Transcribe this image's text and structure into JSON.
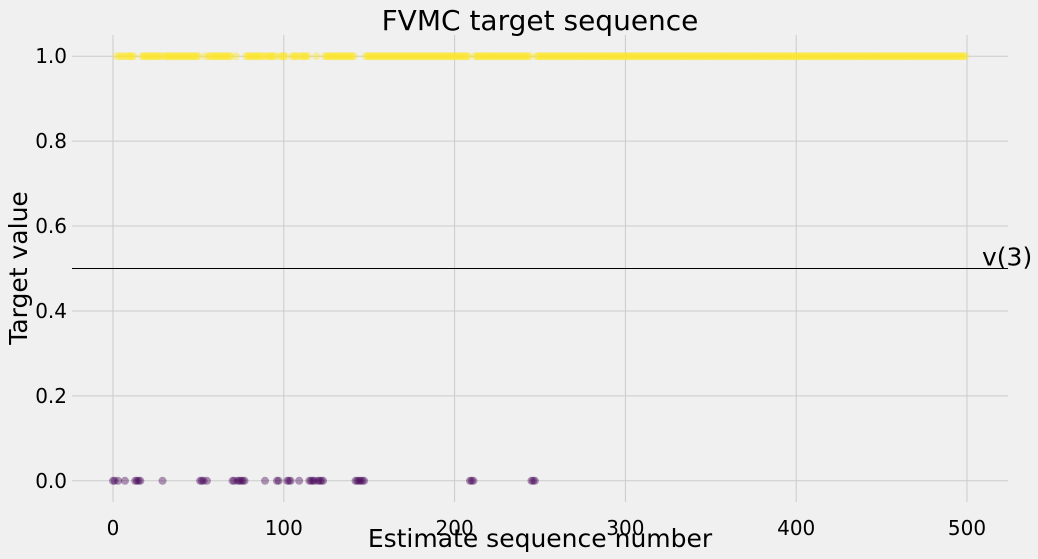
{
  "chart_data": {
    "type": "scatter",
    "title": "FVMC target sequence",
    "xlabel": "Estimate sequence number",
    "ylabel": "Target value",
    "xlim": [
      -24,
      524
    ],
    "ylim": [
      -0.05,
      1.05
    ],
    "xticks": [
      0,
      100,
      200,
      300,
      400,
      500
    ],
    "yticks": [
      0.0,
      0.2,
      0.4,
      0.6,
      0.8,
      1.0
    ],
    "xtick_labels": [
      "0",
      "100",
      "200",
      "300",
      "400",
      "500"
    ],
    "ytick_labels": [
      "0.0",
      "0.2",
      "0.4",
      "0.6",
      "0.8",
      "1.0"
    ],
    "grid": true,
    "point_alpha": 0.4,
    "colors": {
      "zero": "#440154",
      "one": "#fde725",
      "background": "#f0f0f0",
      "grid": "#cbcbcb",
      "reference": "#000000"
    },
    "reference_line": {
      "y": 0.5,
      "label": "v(3)"
    },
    "series": [
      {
        "y": 1.0,
        "x": [
          2,
          4,
          5,
          6,
          8,
          9,
          10,
          11,
          12,
          17,
          18,
          19,
          20,
          21,
          22,
          23,
          24,
          25,
          26,
          27,
          28,
          30,
          31,
          32,
          33,
          34,
          35,
          36,
          37,
          38,
          39,
          40,
          41,
          42,
          43,
          44,
          45,
          46,
          47,
          48,
          49,
          50,
          54,
          56,
          57,
          58,
          59,
          60,
          61,
          62,
          63,
          64,
          65,
          66,
          67,
          68,
          69,
          72,
          78,
          79,
          80,
          81,
          82,
          83,
          84,
          85,
          86,
          87,
          88,
          90,
          91,
          92,
          93,
          94,
          95,
          98,
          99,
          100,
          101,
          105,
          106,
          107,
          108,
          110,
          114,
          125,
          111,
          112,
          113,
          119,
          124,
          126,
          127,
          128,
          129,
          130,
          131,
          132,
          133,
          134,
          135,
          136,
          137,
          138,
          139,
          140,
          141,
          148,
          149,
          150,
          151,
          152,
          153,
          154,
          155,
          156,
          157,
          158,
          159,
          160,
          161,
          162,
          163,
          164,
          165,
          166,
          167,
          168,
          169,
          170,
          171,
          172,
          173,
          174,
          175,
          176,
          177,
          178,
          179,
          180,
          181,
          182,
          183,
          184,
          185,
          186,
          187,
          188,
          189,
          190,
          191,
          192,
          193,
          194,
          195,
          196,
          197,
          198,
          199,
          200,
          201,
          202,
          203,
          204,
          205,
          206,
          207,
          208,
          212,
          213,
          214,
          215,
          216,
          217,
          218,
          219,
          220,
          221,
          222,
          223,
          224,
          225,
          226,
          227,
          228,
          229,
          230,
          231,
          232,
          233,
          234,
          235,
          236,
          237,
          238,
          239,
          240,
          241,
          242,
          243,
          244,
          248,
          249,
          250,
          251,
          252,
          253,
          254,
          255,
          256,
          257,
          258,
          259,
          260,
          261,
          262,
          263,
          264,
          265,
          266,
          267,
          268,
          269,
          270,
          271,
          272,
          273,
          274,
          275,
          276,
          277,
          278,
          279,
          280,
          281,
          282,
          283,
          284,
          285,
          286,
          287,
          288,
          289,
          290,
          291,
          292,
          293,
          294,
          295,
          296,
          297,
          298,
          299,
          300,
          301,
          302,
          303,
          304,
          305,
          306,
          307,
          308,
          309,
          310,
          311,
          312,
          313,
          314,
          315,
          316,
          317,
          318,
          319,
          320,
          321,
          322,
          323,
          324,
          325,
          326,
          327,
          328,
          329,
          330,
          331,
          332,
          333,
          334,
          335,
          336,
          337,
          338,
          339,
          340,
          341,
          342,
          343,
          344,
          345,
          346,
          347,
          348,
          349,
          350,
          351,
          352,
          353,
          354,
          355,
          356,
          357,
          358,
          359,
          360,
          361,
          362,
          363,
          364,
          365,
          366,
          367,
          368,
          369,
          370,
          371,
          372,
          373,
          374,
          375,
          376,
          377,
          378,
          379,
          380,
          381,
          382,
          383,
          384,
          385,
          386,
          387,
          388,
          389,
          390,
          391,
          392,
          393,
          394,
          395,
          396,
          397,
          398,
          399,
          400,
          401,
          402,
          403,
          404,
          405,
          406,
          407,
          408,
          409,
          410,
          411,
          412,
          413,
          414,
          415,
          416,
          417,
          418,
          419,
          420,
          421,
          422,
          423,
          424,
          425,
          426,
          427,
          428,
          429,
          430,
          431,
          432,
          433,
          434,
          435,
          436,
          437,
          438,
          439,
          440,
          441,
          442,
          443,
          444,
          445,
          446,
          447,
          448,
          449,
          450,
          451,
          452,
          453,
          454,
          455,
          456,
          457,
          458,
          459,
          460,
          461,
          462,
          463,
          464,
          465,
          466,
          467,
          468,
          469,
          470,
          471,
          472,
          473,
          474,
          475,
          476,
          477,
          478,
          479,
          480,
          481,
          482,
          483,
          484,
          485,
          486,
          487,
          488,
          489,
          490,
          491,
          492,
          493,
          494,
          495,
          496,
          497,
          498,
          499
        ]
      },
      {
        "y": 0.0,
        "x": [
          0,
          1,
          3,
          7,
          13,
          14,
          15,
          16,
          29,
          51,
          52,
          53,
          55,
          70,
          71,
          73,
          74,
          75,
          76,
          77,
          89,
          96,
          97,
          102,
          103,
          104,
          109,
          115,
          116,
          117,
          118,
          120,
          121,
          122,
          123,
          142,
          143,
          144,
          145,
          146,
          147,
          209,
          210,
          211,
          245,
          246,
          247
        ]
      }
    ]
  }
}
